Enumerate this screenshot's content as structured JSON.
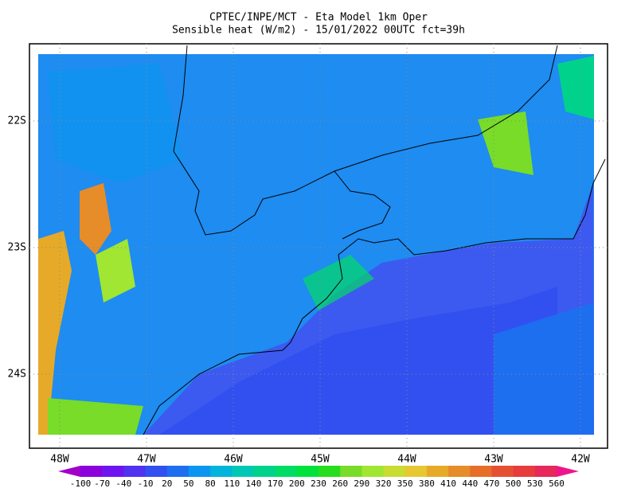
{
  "title": [
    "CPTEC/INPE/MCT -  Eta Model 1km Oper",
    "Sensible heat (W/m2) - 15/01/2022 00UTC fct=39h"
  ],
  "lat_labels": [
    "22S",
    "23S",
    "24S"
  ],
  "lon_labels": [
    "48W",
    "47W",
    "46W",
    "45W",
    "44W",
    "43W",
    "42W"
  ],
  "colorbar": {
    "labels": [
      "-100",
      "-70",
      "-40",
      "-10",
      "20",
      "50",
      "80",
      "110",
      "140",
      "170",
      "200",
      "230",
      "260",
      "290",
      "320",
      "350",
      "380",
      "410",
      "440",
      "470",
      "500",
      "530",
      "560"
    ],
    "colors": [
      "#a000c8",
      "#8c00dc",
      "#6e14f0",
      "#5032f0",
      "#3250f0",
      "#1e6ef0",
      "#0a96f0",
      "#00b4dc",
      "#00c8b4",
      "#00d28c",
      "#00dc64",
      "#00e13c",
      "#28dc1e",
      "#78dc28",
      "#a0e632",
      "#c8dc32",
      "#e6c832",
      "#e6aa28",
      "#e68c28",
      "#e66e28",
      "#e65032",
      "#e63c3c",
      "#e6285a",
      "#f0148c"
    ]
  }
}
